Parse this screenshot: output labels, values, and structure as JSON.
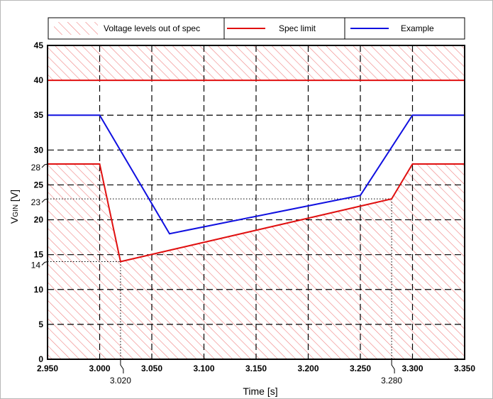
{
  "chart_data": {
    "type": "line",
    "xlabel": "Time [s]",
    "ylabel_main": "V",
    "ylabel_sub": "GIN",
    "ylabel_unit": " [V]",
    "xlim": [
      2.95,
      3.35
    ],
    "ylim": [
      0,
      45
    ],
    "x_ticks": [
      2.95,
      3.0,
      3.05,
      3.1,
      3.15,
      3.2,
      3.25,
      3.3,
      3.35
    ],
    "x_tick_labels": [
      "2.950",
      "3.000",
      "3.050",
      "3.100",
      "3.150",
      "3.200",
      "3.250",
      "3.300",
      "3.350"
    ],
    "y_ticks": [
      0,
      5,
      10,
      15,
      20,
      25,
      30,
      35,
      40,
      45
    ],
    "y_tick_labels": [
      "0",
      "5",
      "10",
      "15",
      "20",
      "25",
      "30",
      "35",
      "40",
      "45"
    ],
    "y_callouts": [
      {
        "value": 28,
        "label": "28"
      },
      {
        "value": 23,
        "label": "23"
      },
      {
        "value": 14,
        "label": "14"
      }
    ],
    "x_callouts": [
      {
        "value": 3.02,
        "label": "3.020",
        "y": 14
      },
      {
        "value": 3.28,
        "label": "3.280",
        "y": 23
      }
    ],
    "grid": true,
    "legend": {
      "position": "top",
      "items": [
        {
          "label": "Voltage levels out of spec",
          "kind": "hatch"
        },
        {
          "label": "Spec limit",
          "kind": "line",
          "series": 0
        },
        {
          "label": "Example",
          "kind": "line",
          "series": 1
        }
      ]
    },
    "series": [
      {
        "name": "Spec limit",
        "color": "#e01010",
        "upper_x": [
          2.95,
          3.35
        ],
        "upper_y": [
          40,
          40
        ],
        "x": [
          2.95,
          3.0,
          3.02,
          3.28,
          3.3,
          3.35
        ],
        "y": [
          28,
          28,
          14,
          23,
          28,
          28
        ]
      },
      {
        "name": "Example",
        "color": "#1010e0",
        "x": [
          2.95,
          3.0,
          3.067,
          3.25,
          3.3,
          3.35
        ],
        "y": [
          35,
          35,
          18,
          23.5,
          35,
          35
        ]
      }
    ],
    "hatch_color": "#f08080"
  }
}
